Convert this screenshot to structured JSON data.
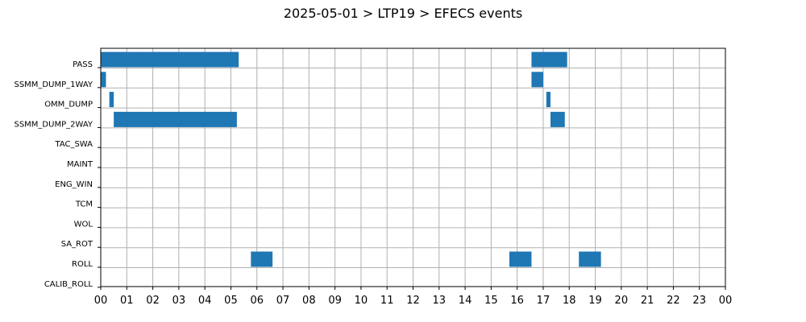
{
  "chart_data": {
    "type": "bar",
    "orientation": "horizontal-timeline",
    "title": "2025-05-01 > LTP19 > EFECS events",
    "xlabel": "",
    "ylabel": "",
    "x_unit": "hour of day",
    "xlim": [
      0,
      24
    ],
    "x_tick_labels": [
      "00",
      "01",
      "02",
      "03",
      "04",
      "05",
      "06",
      "07",
      "08",
      "09",
      "10",
      "11",
      "12",
      "13",
      "14",
      "15",
      "16",
      "17",
      "18",
      "19",
      "20",
      "21",
      "22",
      "23",
      "00"
    ],
    "categories": [
      "PASS",
      "SSMM_DUMP_1WAY",
      "OMM_DUMP",
      "SSMM_DUMP_2WAY",
      "TAC_SWA",
      "MAINT",
      "ENG_WIN",
      "TCM",
      "WOL",
      "SA_ROT",
      "ROLL",
      "CALIB_ROLL"
    ],
    "grid": true,
    "legend": "none",
    "bar_color": "#1f77b4",
    "events": [
      {
        "category": "PASS",
        "start": 0.0,
        "end": 5.3
      },
      {
        "category": "PASS",
        "start": 16.55,
        "end": 17.92
      },
      {
        "category": "SSMM_DUMP_1WAY",
        "start": 0.0,
        "end": 0.2
      },
      {
        "category": "SSMM_DUMP_1WAY",
        "start": 16.55,
        "end": 17.0
      },
      {
        "category": "OMM_DUMP",
        "start": 0.33,
        "end": 0.5
      },
      {
        "category": "OMM_DUMP",
        "start": 17.12,
        "end": 17.28
      },
      {
        "category": "SSMM_DUMP_2WAY",
        "start": 0.5,
        "end": 5.23
      },
      {
        "category": "SSMM_DUMP_2WAY",
        "start": 17.28,
        "end": 17.83
      },
      {
        "category": "ROLL",
        "start": 5.77,
        "end": 6.6
      },
      {
        "category": "ROLL",
        "start": 15.7,
        "end": 16.55
      },
      {
        "category": "ROLL",
        "start": 18.37,
        "end": 19.22
      }
    ]
  }
}
